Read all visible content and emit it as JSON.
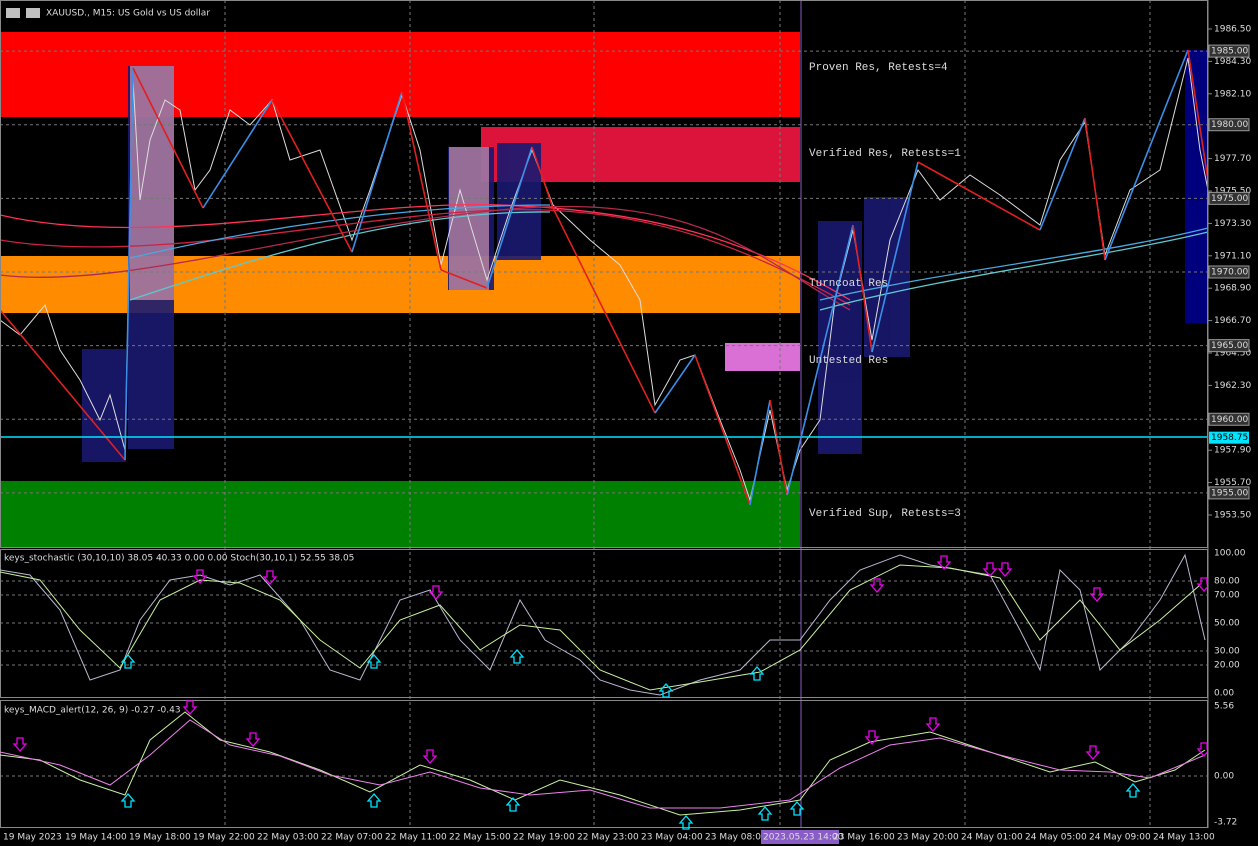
{
  "header": {
    "title": "XAUUSD., M15:  US Gold vs US dollar"
  },
  "price_axis": {
    "labels": [
      "1986.50",
      "1984.30",
      "1982.10",
      "1977.70",
      "1975.50",
      "1973.30",
      "1971.10",
      "1968.90",
      "1966.70",
      "1964.50",
      "1962.30",
      "1957.90",
      "1955.70",
      "1953.50"
    ],
    "levels": [
      "1985.00",
      "1980.00",
      "1975.00",
      "1970.00",
      "1965.00",
      "1960.00",
      "1955.00"
    ],
    "current": "1958.75"
  },
  "zones": [
    "Proven Res, Retests=4",
    "Verified Res, Retests=1",
    "Turncoat Res",
    "Untested Res",
    "Verified Sup, Retests=3"
  ],
  "stochastic": {
    "label": "keys_stochastic (30,10,10) 38.05 40.33 0.00 0.00 Stoch(30,10,1) 52.55 38.05",
    "axis": [
      "100.00",
      "80.00",
      "70.00",
      "50.00",
      "30.00",
      "20.00",
      "0.00"
    ]
  },
  "macd": {
    "label": "keys_MACD_alert(12, 26, 9) -0.27 -0.43",
    "axis": [
      "5.56",
      "0.00",
      "-3.72"
    ]
  },
  "time_axis": [
    "19 May 2023",
    "19 May 14:00",
    "19 May 18:00",
    "19 May 22:00",
    "22 May 03:00",
    "22 May 07:00",
    "22 May 11:00",
    "22 May 15:00",
    "22 May 19:00",
    "22 May 23:00",
    "23 May 04:00",
    "23 May 08:00",
    "2023.05.23 14:00",
    "23 May 16:00",
    "23 May 20:00",
    "24 May 01:00",
    "24 May 05:00",
    "24 May 09:00",
    "24 May 13:00"
  ]
}
